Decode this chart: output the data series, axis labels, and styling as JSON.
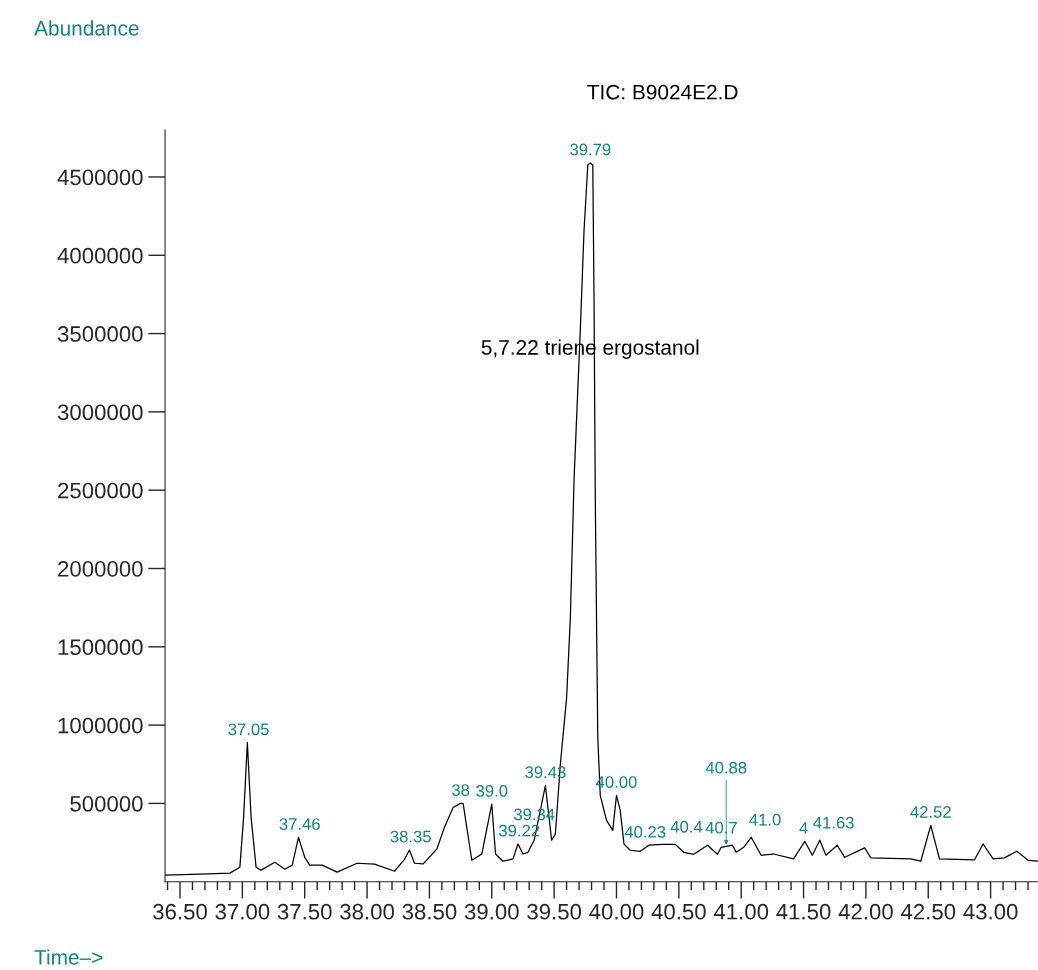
{
  "chart_data": {
    "type": "line",
    "xlabel": "Time–>",
    "x": [
      36.38,
      36.66,
      36.9,
      36.98,
      37.01,
      37.04,
      37.07,
      37.11,
      37.15,
      37.26,
      37.34,
      37.4,
      37.45,
      37.5,
      37.54,
      37.64,
      37.76,
      37.92,
      38.06,
      38.22,
      38.3,
      38.34,
      38.38,
      38.45,
      38.56,
      38.62,
      38.69,
      38.75,
      38.77,
      38.84,
      38.92,
      39.0,
      39.03,
      39.09,
      39.17,
      39.21,
      39.25,
      39.29,
      39.34,
      39.43,
      39.48,
      39.51,
      39.55,
      39.6,
      39.63,
      39.66,
      39.71,
      39.74,
      39.77,
      39.79,
      39.81,
      39.82,
      39.83,
      39.85,
      39.87,
      39.92,
      39.97,
      40.0,
      40.03,
      40.06,
      40.11,
      40.19,
      40.26,
      40.37,
      40.47,
      40.54,
      40.62,
      40.73,
      40.81,
      40.84,
      40.88,
      40.93,
      40.96,
      41.02,
      41.08,
      41.16,
      41.26,
      41.42,
      41.51,
      41.57,
      41.63,
      41.68,
      41.77,
      41.83,
      41.99,
      42.04,
      42.36,
      42.44,
      42.52,
      42.59,
      42.87,
      42.94,
      43.02,
      43.11,
      43.21,
      43.3,
      43.38
    ],
    "series": [
      {
        "color": "#000000",
        "values": [
          42000,
          48000,
          55000,
          93000,
          411000,
          888000,
          411000,
          93000,
          74000,
          124000,
          80000,
          106000,
          283000,
          156000,
          106000,
          106000,
          61000,
          118000,
          112000,
          67000,
          143000,
          203000,
          118000,
          114000,
          209000,
          347000,
          474000,
          500000,
          500000,
          137000,
          177000,
          495000,
          177000,
          131000,
          146000,
          241000,
          177000,
          188000,
          265000,
          614000,
          265000,
          305000,
          750000,
          1174000,
          1683000,
          2573000,
          3527000,
          4162000,
          4576000,
          4590000,
          4576000,
          3718000,
          2446000,
          920000,
          551000,
          392000,
          328000,
          551000,
          455000,
          241000,
          201000,
          194000,
          233000,
          239000,
          239000,
          188000,
          175000,
          233000,
          175000,
          220000,
          226000,
          233000,
          188000,
          220000,
          284000,
          169000,
          177000,
          146000,
          258000,
          169000,
          265000,
          169000,
          233000,
          156000,
          216000,
          152000,
          146000,
          131000,
          360000,
          146000,
          139000,
          241000,
          146000,
          152000,
          195000,
          137000,
          131000
        ]
      }
    ],
    "xlim": [
      36.38,
      43.38
    ],
    "ylim": [
      0,
      4800000
    ],
    "xticks": [
      {
        "value": 36.4,
        "label": null
      },
      {
        "value": 36.5,
        "label": "36.50"
      },
      {
        "value": 36.6,
        "label": null
      },
      {
        "value": 36.7,
        "label": null
      },
      {
        "value": 36.8,
        "label": null
      },
      {
        "value": 36.9,
        "label": null
      },
      {
        "value": 37.0,
        "label": "37.00"
      },
      {
        "value": 37.1,
        "label": null
      },
      {
        "value": 37.2,
        "label": null
      },
      {
        "value": 37.3,
        "label": null
      },
      {
        "value": 37.4,
        "label": null
      },
      {
        "value": 37.5,
        "label": "37.50"
      },
      {
        "value": 37.6,
        "label": null
      },
      {
        "value": 37.7,
        "label": null
      },
      {
        "value": 37.8,
        "label": null
      },
      {
        "value": 37.9,
        "label": null
      },
      {
        "value": 38.0,
        "label": "38.00"
      },
      {
        "value": 38.1,
        "label": null
      },
      {
        "value": 38.2,
        "label": null
      },
      {
        "value": 38.3,
        "label": null
      },
      {
        "value": 38.4,
        "label": null
      },
      {
        "value": 38.5,
        "label": "38.50"
      },
      {
        "value": 38.6,
        "label": null
      },
      {
        "value": 38.7,
        "label": null
      },
      {
        "value": 38.8,
        "label": null
      },
      {
        "value": 38.9,
        "label": null
      },
      {
        "value": 39.0,
        "label": "39.00"
      },
      {
        "value": 39.1,
        "label": null
      },
      {
        "value": 39.2,
        "label": null
      },
      {
        "value": 39.3,
        "label": null
      },
      {
        "value": 39.4,
        "label": null
      },
      {
        "value": 39.5,
        "label": "39.50"
      },
      {
        "value": 39.6,
        "label": null
      },
      {
        "value": 39.7,
        "label": null
      },
      {
        "value": 39.8,
        "label": null
      },
      {
        "value": 39.9,
        "label": null
      },
      {
        "value": 40.0,
        "label": "40.00"
      },
      {
        "value": 40.1,
        "label": null
      },
      {
        "value": 40.2,
        "label": null
      },
      {
        "value": 40.3,
        "label": null
      },
      {
        "value": 40.4,
        "label": null
      },
      {
        "value": 40.5,
        "label": "40.50"
      },
      {
        "value": 40.6,
        "label": null
      },
      {
        "value": 40.7,
        "label": null
      },
      {
        "value": 40.8,
        "label": null
      },
      {
        "value": 40.9,
        "label": null
      },
      {
        "value": 41.0,
        "label": "41.00"
      },
      {
        "value": 41.1,
        "label": null
      },
      {
        "value": 41.2,
        "label": null
      },
      {
        "value": 41.3,
        "label": null
      },
      {
        "value": 41.4,
        "label": null
      },
      {
        "value": 41.5,
        "label": "41.50"
      },
      {
        "value": 41.6,
        "label": null
      },
      {
        "value": 41.7,
        "label": null
      },
      {
        "value": 41.8,
        "label": null
      },
      {
        "value": 41.9,
        "label": null
      },
      {
        "value": 42.0,
        "label": "42.00"
      },
      {
        "value": 42.1,
        "label": null
      },
      {
        "value": 42.2,
        "label": null
      },
      {
        "value": 42.3,
        "label": null
      },
      {
        "value": 42.4,
        "label": null
      },
      {
        "value": 42.5,
        "label": "42.50"
      },
      {
        "value": 42.6,
        "label": null
      },
      {
        "value": 42.7,
        "label": null
      },
      {
        "value": 42.8,
        "label": null
      },
      {
        "value": 42.9,
        "label": null
      },
      {
        "value": 43.0,
        "label": "43.00"
      },
      {
        "value": 43.1,
        "label": null
      },
      {
        "value": 43.2,
        "label": null
      },
      {
        "value": 43.3,
        "label": null
      }
    ],
    "yticks": [
      500000,
      1000000,
      1500000,
      2000000,
      2500000,
      3000000,
      3500000,
      4000000,
      4500000
    ],
    "annotations": [
      "TIC: B9024E2.D",
      "Abundance",
      {
        "text": "5,7.22 triene ergostanol",
        "x": 39.79,
        "y": 3400000
      },
      {
        "text": "37.05",
        "x": 37.05,
        "y": 888000
      },
      {
        "text": "37.46",
        "x": 37.46,
        "y": 283000
      },
      {
        "text": "38.35",
        "x": 38.35,
        "y": 203000
      },
      {
        "text": "38",
        "x": 38.75,
        "y": 500000
      },
      {
        "text": "39.0",
        "x": 39.0,
        "y": 495000
      },
      {
        "text": "39.22",
        "x": 39.22,
        "y": 241000
      },
      {
        "text": "39.34",
        "x": 39.34,
        "y": 265000
      },
      {
        "text": "39.43",
        "x": 39.43,
        "y": 614000
      },
      {
        "text": "39.79",
        "x": 39.79,
        "y": 4590000
      },
      {
        "text": "40.00",
        "x": 40.0,
        "y": 551000
      },
      {
        "text": "40.23",
        "x": 40.23,
        "y": 233000
      },
      {
        "text": "40.4",
        "x": 40.45,
        "y": 239000
      },
      {
        "text": "40.7",
        "x": 40.73,
        "y": 233000
      },
      {
        "text": "40.88",
        "x": 40.88,
        "y": 226000
      },
      {
        "text": "41.0",
        "x": 41.08,
        "y": 284000
      },
      {
        "text": "4",
        "x": 41.5,
        "y": 258000
      },
      {
        "text": "41.63",
        "x": 41.63,
        "y": 265000
      },
      {
        "text": "42.52",
        "x": 42.52,
        "y": 360000
      }
    ],
    "grid": false,
    "legend": false
  }
}
